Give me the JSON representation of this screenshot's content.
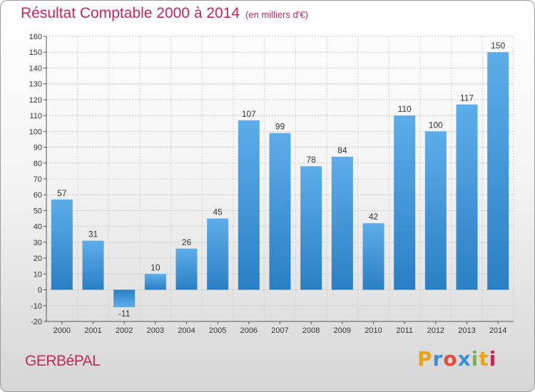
{
  "chart_data": {
    "type": "bar",
    "title": "Résultat Comptable 2000 à 2014",
    "subtitle": "(en milliers d'€)",
    "categories": [
      "2000",
      "2001",
      "2002",
      "2003",
      "2004",
      "2005",
      "2006",
      "2007",
      "2008",
      "2009",
      "2010",
      "2011",
      "2012",
      "2013",
      "2014"
    ],
    "values": [
      57,
      31,
      -11,
      10,
      26,
      45,
      107,
      99,
      78,
      84,
      42,
      110,
      100,
      117,
      150
    ],
    "ylim": [
      -20,
      160
    ],
    "yticks": [
      -20,
      -10,
      0,
      10,
      20,
      30,
      40,
      50,
      60,
      70,
      80,
      90,
      100,
      110,
      120,
      130,
      140,
      150,
      160
    ],
    "grid": true,
    "colors": {
      "bar_top": "#5dadea",
      "bar_bottom": "#2a7fc4",
      "title": "#c0285e"
    }
  },
  "footer": {
    "place": "GERBéPAL",
    "logo": "Proxiti"
  }
}
